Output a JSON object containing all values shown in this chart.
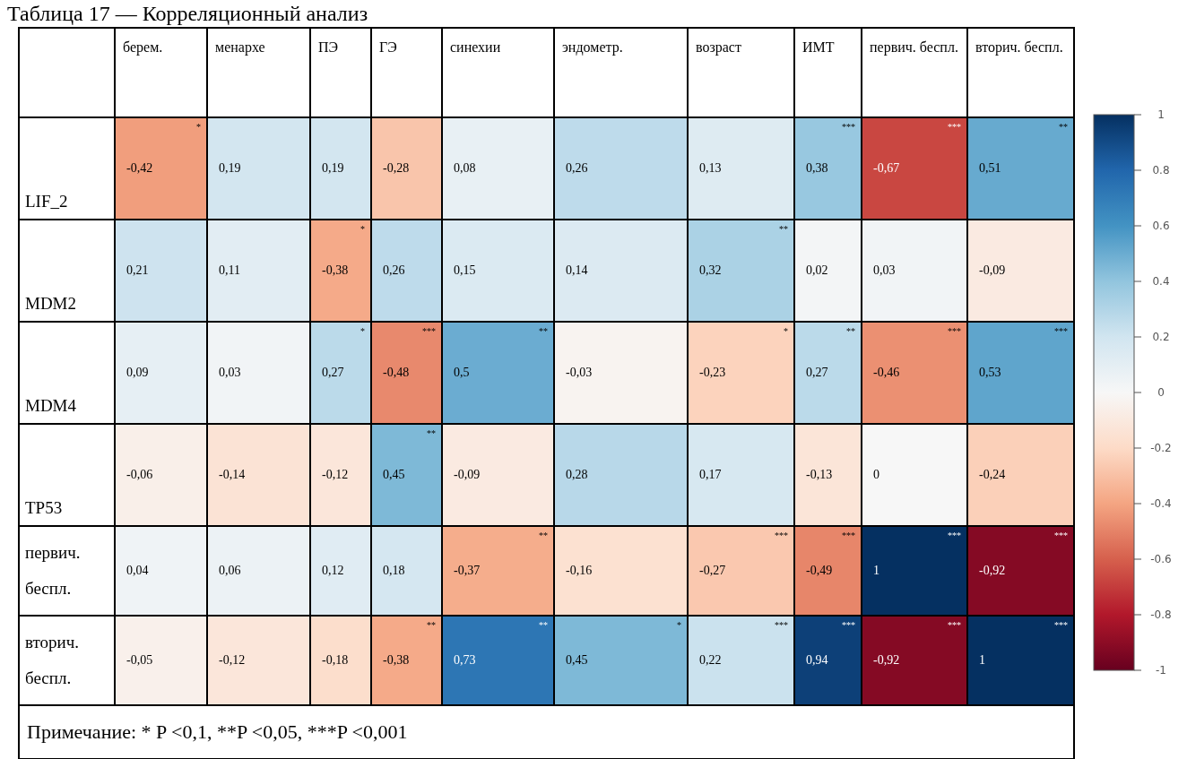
{
  "chart_data": {
    "type": "heatmap",
    "title": "Таблица 17 — Корреляционный анализ",
    "categories": [
      "берем.",
      "менархе",
      "ПЭ",
      "ГЭ",
      "синехии",
      "эндометр.",
      "возраст",
      "ИМТ",
      "первич. беспл.",
      "вторич. беспл."
    ],
    "y_categories": [
      "LIF_2",
      "MDM2",
      "MDM4",
      "TP53",
      "первич. беспл.",
      "вторич. беспл."
    ],
    "cells": [
      [
        -0.42,
        0.19,
        0.19,
        -0.28,
        0.08,
        0.26,
        0.13,
        0.38,
        -0.67,
        0.51
      ],
      [
        0.21,
        0.11,
        -0.38,
        0.26,
        0.15,
        0.14,
        0.32,
        0.02,
        0.03,
        -0.09
      ],
      [
        0.09,
        0.03,
        0.27,
        -0.48,
        0.5,
        -0.03,
        -0.23,
        0.27,
        -0.46,
        0.53
      ],
      [
        -0.06,
        -0.14,
        -0.12,
        0.45,
        -0.09,
        0.28,
        0.17,
        -0.13,
        0,
        -0.24
      ],
      [
        0.04,
        0.06,
        0.12,
        0.18,
        -0.37,
        -0.16,
        -0.27,
        -0.49,
        1,
        -0.92
      ],
      [
        -0.05,
        -0.12,
        -0.18,
        -0.38,
        0.73,
        0.45,
        0.22,
        0.94,
        -0.92,
        1
      ]
    ],
    "cell_labels": [
      [
        "-0,42$^{*}$",
        "0,19",
        "0,19",
        "-0,28",
        "0,08",
        "0,26",
        "0,13",
        "0,38$^{***}$",
        "-0,67$^{***}$",
        "0,51$^{**}$"
      ],
      [
        "0,21",
        "0,11",
        "-0,38$^{*}$",
        "0,26",
        "0,15",
        "0,14",
        "0,32$^{**}$",
        "0,02",
        "0,03",
        "-0,09"
      ],
      [
        "0,09",
        "0,03",
        "0,27$^{*}$",
        "-0,48$^{***}$",
        "0,5$^{**}$",
        "-0,03",
        "-0,23$^{*}$",
        "0,27$^{**}$",
        "-0,46$^{***}$",
        "0,53$^{***}$"
      ],
      [
        "-0,06",
        "-0,14",
        "-0,12",
        "0,45$^{**}$",
        "-0,09",
        "0,28",
        "0,17",
        "-0,13",
        "0",
        "-0,24"
      ],
      [
        "0,04",
        "0,06",
        "0,12",
        "0,18",
        "-0,37$^{**}$",
        "-0,16",
        "-0,27$^{***}$",
        "-0,49$^{***}$",
        "1$^{***}$",
        "-0,92$^{***}$"
      ],
      [
        "-0,05",
        "-0,12",
        "-0,18",
        "-0,38$^{**}$",
        "0,73$^{**}$",
        "0,45$^{*}$",
        "0,22$^{***}$",
        "0,94$^{***}$",
        "-0,92$^{***}$",
        "1$^{***}$"
      ]
    ],
    "clim": [
      -1,
      1
    ],
    "cticks": [
      -1,
      -0.8,
      -0.6,
      -0.4,
      -0.2,
      0,
      0.2,
      0.4,
      0.6,
      0.8,
      1
    ],
    "annotations": [
      "Примечание: * P <0,1, **P <0,05, ***P <0,001"
    ]
  }
}
